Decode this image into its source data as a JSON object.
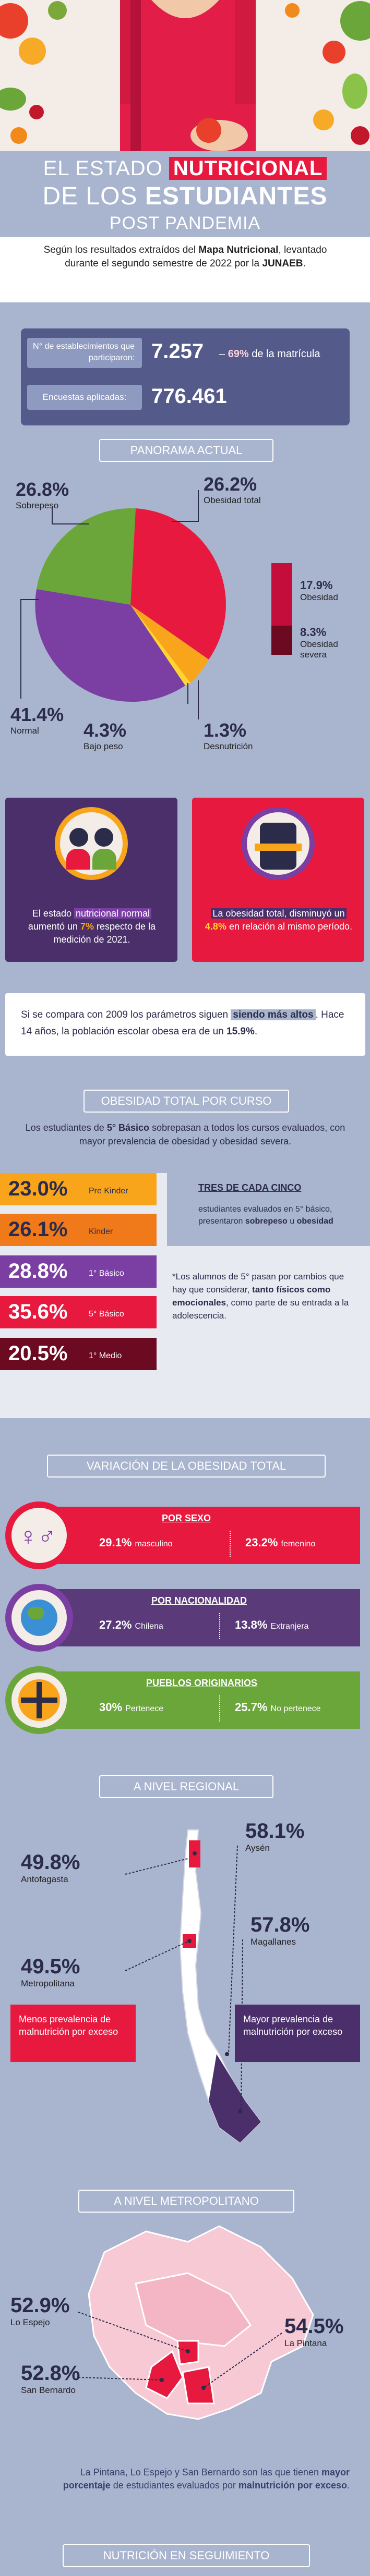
{
  "title": {
    "line1_prefix": "EL ESTADO",
    "line1_highlight": "NUTRICIONAL",
    "line2_prefix": "DE LOS",
    "line2_highlight": "ESTUDIANTES",
    "line3": "POST PANDEMIA"
  },
  "intro": {
    "part1": "Según los resultados extraídos del ",
    "bold1": "Mapa Nutricional",
    "part2": ", levantado durante el segundo semestre de 2022 por la ",
    "bold2": "JUNAEB",
    "part3": "."
  },
  "stats": {
    "establishments_label": "N° de establecimientos que participaron:",
    "establishments_value": "7.257",
    "establishments_pct": "69%",
    "establishments_pct_suffix": "de la matrícula",
    "surveys_label": "Encuestas aplicadas:",
    "surveys_value": "776.461"
  },
  "panorama": {
    "heading": "PANORAMA ACTUAL",
    "slices": [
      {
        "value": "26.8%",
        "label": "Sobrepeso",
        "color": "#6aa63a"
      },
      {
        "value": "26.2%",
        "label": "Obesidad total",
        "color": "#e8193f"
      },
      {
        "value": "41.4%",
        "label": "Normal",
        "color": "#7b3fa3"
      },
      {
        "value": "4.3%",
        "label": "Bajo peso",
        "color": "#f8a51c"
      },
      {
        "value": "1.3%",
        "label": "Desnutrición",
        "color": "#ffd52e"
      }
    ],
    "obesity_breakdown": [
      {
        "value": "17.9%",
        "label": "Obesidad",
        "color": "#c40d3a"
      },
      {
        "value": "8.3%",
        "label": "Obesidad severa",
        "color": "#6b0a21"
      }
    ]
  },
  "highlights": {
    "normal_text1": "El estado ",
    "normal_hl": "nutricional normal",
    "normal_text2": " aumentó un ",
    "normal_pct": "7%",
    "normal_text3": " respecto de la medición de 2021.",
    "obesity_text1": "La obesidad total, disminuyó un ",
    "obesity_pct": "4.8%",
    "obesity_text2": " en relación al mismo período."
  },
  "compare": {
    "text1": "Si se compara con 2009 los parámetros siguen ",
    "hl": "siendo más altos",
    "text2": ". Hace 14 años, la población escolar obesa era de un ",
    "bold": "15.9%",
    "text3": "."
  },
  "courses": {
    "heading": "OBESIDAD TOTAL POR CURSO",
    "intro1": "Los estudiantes de ",
    "intro_bold": "5° Básico",
    "intro2": " sobrepasan a todos los cursos evaluados, con mayor prevalencia de obesidad y obesidad severa.",
    "items": [
      {
        "value": "23.0%",
        "label": "Pre Kinder",
        "bg": "#f8a51c",
        "fg": "#2b2b4a"
      },
      {
        "value": "26.1%",
        "label": "Kinder",
        "bg": "#f07a1a",
        "fg": "#2b2b4a"
      },
      {
        "value": "28.8%",
        "label": "1° Básico",
        "bg": "#7b3fa3",
        "fg": "#ffffff"
      },
      {
        "value": "35.6%",
        "label": "5° Básico",
        "bg": "#e8193f",
        "fg": "#ffffff"
      },
      {
        "value": "20.5%",
        "label": "1° Medio",
        "bg": "#6b0a21",
        "fg": "#ffffff"
      }
    ],
    "three_of_five_title": "TRES DE CADA CINCO",
    "three_text1": "estudiantes evaluados en 5° básico, presentaron ",
    "three_bold1": "sobrepeso",
    "three_text2": " u ",
    "three_bold2": "obesidad",
    "note1": "*Los alumnos de 5° pasan por cambios que hay que considerar, ",
    "note_bold": "tanto físicos como emocionales",
    "note2": ", como parte de su entrada a la adolescencia."
  },
  "variation": {
    "heading": "VARIACIÓN DE LA OBESIDAD TOTAL",
    "groups": [
      {
        "title": "POR SEXO",
        "bg": "#e8193f",
        "a_value": "29.1%",
        "a_label": "masculino",
        "b_value": "23.2%",
        "b_label": "femenino",
        "icon": "gender-icon"
      },
      {
        "title": "POR NACIONALIDAD",
        "bg": "#5a3a78",
        "a_value": "27.2%",
        "a_label": "Chilena",
        "b_value": "13.8%",
        "b_label": "Extranjera",
        "icon": "globe-icon"
      },
      {
        "title": "PUEBLOS ORIGINARIOS",
        "bg": "#6aa63a",
        "a_value": "30%",
        "a_label": "Pertenece",
        "b_value": "25.7%",
        "b_label": "No pertenece",
        "icon": "mapuche-symbol-icon"
      }
    ]
  },
  "regional": {
    "heading": "A NIVEL REGIONAL",
    "left": [
      {
        "value": "49.8%",
        "label": "Antofagasta"
      },
      {
        "value": "49.5%",
        "label": "Metropolitana"
      }
    ],
    "right": [
      {
        "value": "58.1%",
        "label": "Aysén"
      },
      {
        "value": "57.8%",
        "label": "Magallanes"
      }
    ],
    "less_box": "Menos prevalencia de malnutrición por exceso",
    "more_box": "Mayor prevalencia de malnutrición por exceso"
  },
  "metro": {
    "heading": "A NIVEL METROPOLITANO",
    "items": [
      {
        "value": "52.9%",
        "label": "Lo Espejo"
      },
      {
        "value": "52.8%",
        "label": "San Bernardo"
      },
      {
        "value": "54.5%",
        "label": "La Pintana"
      }
    ],
    "footer1": "La Pintana, Lo Espejo y San Bernardo son las que tienen ",
    "footer_bold1": "mayor porcentaje",
    "footer2": " de estudiantes evaluados por ",
    "footer_bold2": "malnutrición por exceso",
    "footer3": "."
  },
  "footer_heading": "NUTRICIÓN EN SEGUIMIENTO"
}
